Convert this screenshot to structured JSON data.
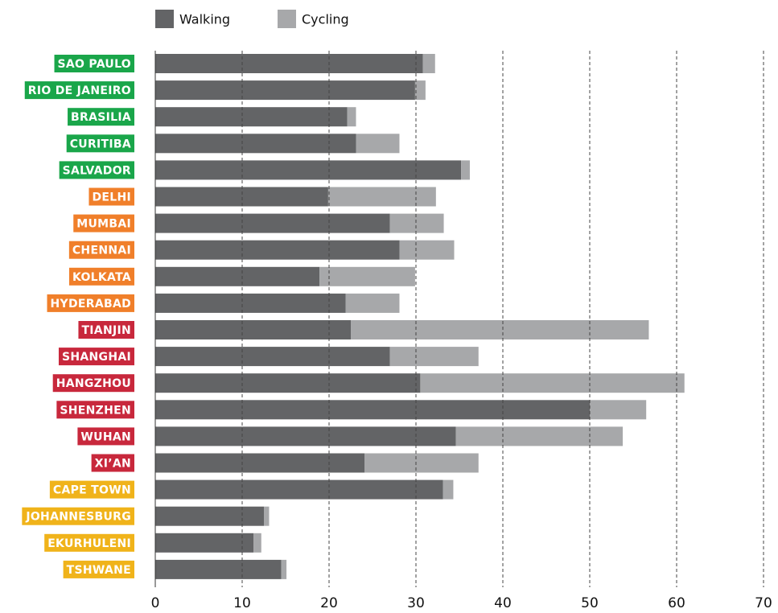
{
  "chart_data": {
    "type": "stacked_barh",
    "categories": [
      "SAO PAULO",
      "RIO DE JANEIRO",
      "BRASILIA",
      "CURITIBA",
      "SALVADOR",
      "DELHI",
      "MUMBAI",
      "CHENNAI",
      "KOLKATA",
      "HYDERABAD",
      "TIANJIN",
      "SHANGHAI",
      "HANGZHOU",
      "SHENZHEN",
      "WUHAN",
      "XI’AN",
      "CAPE TOWN",
      "JOHANNESBURG",
      "EKURHULENI",
      "TSHWANE"
    ],
    "category_colors": [
      "#1aa64a",
      "#1aa64a",
      "#1aa64a",
      "#1aa64a",
      "#1aa64a",
      "#f07f2a",
      "#f07f2a",
      "#f07f2a",
      "#f07f2a",
      "#f07f2a",
      "#c8283c",
      "#c8283c",
      "#c8283c",
      "#c8283c",
      "#c8283c",
      "#c8283c",
      "#f0b31a",
      "#f0b31a",
      "#f0b31a",
      "#f0b31a"
    ],
    "series": [
      {
        "name": "Walking",
        "color": "#636466",
        "values": [
          30.8,
          29.9,
          22.1,
          23.1,
          35.2,
          19.9,
          27.0,
          28.1,
          18.9,
          21.9,
          22.5,
          27.0,
          30.5,
          50.0,
          34.6,
          24.1,
          33.1,
          12.5,
          11.3,
          14.5
        ]
      },
      {
        "name": "Cycling",
        "color": "#a7a8aa",
        "values": [
          1.4,
          1.2,
          1.0,
          5.0,
          1.0,
          12.4,
          6.2,
          6.3,
          11.0,
          6.2,
          34.3,
          10.2,
          30.4,
          6.5,
          19.2,
          13.1,
          1.2,
          0.6,
          0.9,
          0.6
        ]
      }
    ],
    "xlim": [
      0,
      70
    ],
    "xticks": [
      0,
      10,
      20,
      30,
      40,
      50,
      60,
      70
    ],
    "grid": true
  }
}
